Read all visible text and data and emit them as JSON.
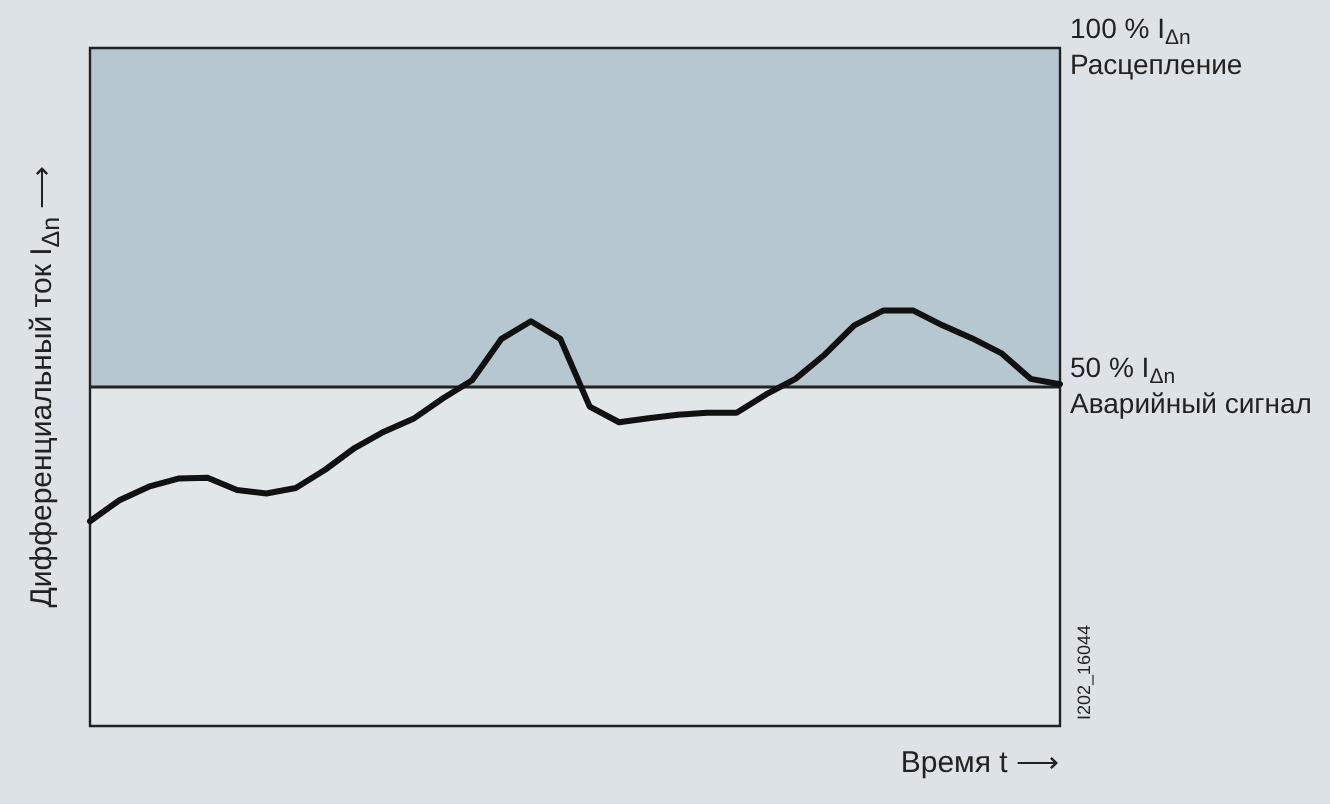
{
  "chart_data": {
    "type": "line",
    "xlabel": "Время t ⟶",
    "ylabel": "Дифференциальный ток I$_{Δn}$ ⟶",
    "annotations": [
      "I202_16044"
    ],
    "categories": [
      null,
      null,
      null,
      null,
      null,
      null,
      null,
      null,
      null,
      null,
      null,
      null,
      null,
      null,
      null,
      null,
      null,
      null,
      null,
      null,
      null,
      null,
      null,
      null,
      null,
      null,
      null,
      null,
      null,
      null,
      null,
      null,
      null,
      null
    ],
    "series": [
      {
        "color": "#111111",
        "values": [
          30.2,
          33.3,
          35.3,
          36.5,
          36.6,
          34.8,
          34.3,
          35.1,
          37.8,
          41.0,
          43.4,
          45.3,
          48.3,
          51.0,
          57.1,
          59.7,
          57.1,
          47.1,
          44.8,
          45.4,
          45.9,
          46.2,
          46.2,
          48.9,
          51.2,
          54.8,
          59.1,
          61.3,
          61.3,
          59.1,
          57.2,
          55.0,
          51.2,
          50.4
        ]
      }
    ],
    "ylim": [
      0,
      100
    ],
    "yticks": [
      {
        "value": 50,
        "label": "50 % I$_{Δn}$\nАварийный сигнал"
      },
      {
        "value": 100,
        "label": "100 % I$_{Δn}$\nРасцепление"
      }
    ],
    "ref_lines": [
      {
        "axis": "y",
        "value": 50,
        "color": "#222222"
      }
    ],
    "bands": [
      {
        "axis": "y",
        "from": 50,
        "to": 100,
        "color": "#b6c7d0"
      }
    ],
    "legend": false,
    "marker": "none",
    "line_style": "solid"
  }
}
